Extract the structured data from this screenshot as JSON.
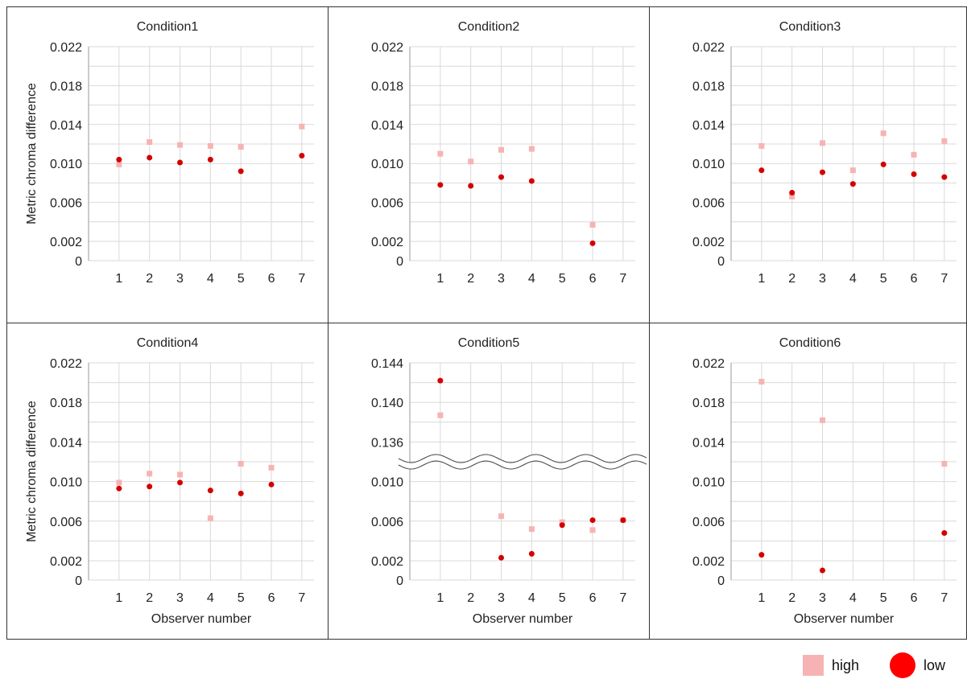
{
  "colors": {
    "high": "#f7b3b3",
    "low": "#d40000",
    "low_legend": "#ff0000",
    "grid": "#d9d9d9",
    "frame": "#333333"
  },
  "legend": {
    "high_label": "high",
    "low_label": "low"
  },
  "chart_data": [
    {
      "type": "scatter",
      "title": "Condition1",
      "ylabel": "Metric chroma difference",
      "xlabel": "",
      "categories": [
        "1",
        "2",
        "3",
        "4",
        "5",
        "6",
        "7"
      ],
      "ylim": [
        0,
        0.022
      ],
      "yticks": [
        "0.022",
        "0.018",
        "0.014",
        "0.010",
        "0.006",
        "0.002",
        "0"
      ],
      "grid": true,
      "series": [
        {
          "name": "high",
          "x": [
            1,
            2,
            3,
            4,
            5,
            7
          ],
          "y": [
            0.0099,
            0.0122,
            0.0119,
            0.0118,
            0.0117,
            0.0138
          ]
        },
        {
          "name": "low",
          "x": [
            1,
            2,
            3,
            4,
            5,
            7
          ],
          "y": [
            0.0104,
            0.0106,
            0.0101,
            0.0104,
            0.0092,
            0.0108
          ]
        }
      ]
    },
    {
      "type": "scatter",
      "title": "Condition2",
      "ylabel": "",
      "xlabel": "",
      "categories": [
        "1",
        "2",
        "3",
        "4",
        "5",
        "6",
        "7"
      ],
      "ylim": [
        0,
        0.022
      ],
      "yticks": [
        "0.022",
        "0.018",
        "0.014",
        "0.010",
        "0.006",
        "0.002",
        "0"
      ],
      "grid": true,
      "series": [
        {
          "name": "high",
          "x": [
            1,
            2,
            3,
            4,
            6
          ],
          "y": [
            0.011,
            0.0102,
            0.0114,
            0.0115,
            0.0037
          ]
        },
        {
          "name": "low",
          "x": [
            1,
            2,
            3,
            4,
            6
          ],
          "y": [
            0.0078,
            0.0077,
            0.0086,
            0.0082,
            0.0018
          ]
        }
      ]
    },
    {
      "type": "scatter",
      "title": "Condition3",
      "ylabel": "",
      "xlabel": "",
      "categories": [
        "1",
        "2",
        "3",
        "4",
        "5",
        "6",
        "7"
      ],
      "ylim": [
        0,
        0.022
      ],
      "yticks": [
        "0.022",
        "0.018",
        "0.014",
        "0.010",
        "0.006",
        "0.002",
        "0"
      ],
      "grid": true,
      "series": [
        {
          "name": "high",
          "x": [
            1,
            2,
            3,
            4,
            5,
            6,
            7
          ],
          "y": [
            0.0118,
            0.0066,
            0.0121,
            0.0093,
            0.0131,
            0.0109,
            0.0123
          ]
        },
        {
          "name": "low",
          "x": [
            1,
            2,
            3,
            4,
            5,
            6,
            7
          ],
          "y": [
            0.0093,
            0.007,
            0.0091,
            0.0079,
            0.0099,
            0.0089,
            0.0086
          ]
        }
      ]
    },
    {
      "type": "scatter",
      "title": "Condition4",
      "ylabel": "Metric chroma difference",
      "xlabel": "Observer number",
      "categories": [
        "1",
        "2",
        "3",
        "4",
        "5",
        "6",
        "7"
      ],
      "ylim": [
        0,
        0.022
      ],
      "yticks": [
        "0.022",
        "0.018",
        "0.014",
        "0.010",
        "0.006",
        "0.002",
        "0"
      ],
      "grid": true,
      "series": [
        {
          "name": "high",
          "x": [
            1,
            2,
            3,
            4,
            5,
            6
          ],
          "y": [
            0.0099,
            0.0108,
            0.0107,
            0.0063,
            0.0118,
            0.0114
          ]
        },
        {
          "name": "low",
          "x": [
            1,
            2,
            3,
            4,
            5,
            6
          ],
          "y": [
            0.0093,
            0.0095,
            0.0099,
            0.0091,
            0.0088,
            0.0097
          ]
        }
      ]
    },
    {
      "type": "scatter",
      "title": "Condition5",
      "ylabel": "",
      "xlabel": "Observer number",
      "categories": [
        "1",
        "2",
        "3",
        "4",
        "5",
        "6",
        "7"
      ],
      "broken_axis": true,
      "ylim": [
        0,
        0.144
      ],
      "yticks": [
        "0.144",
        "0.140",
        "0.136",
        "0.010",
        "0.006",
        "0.002",
        "0"
      ],
      "grid": true,
      "series": [
        {
          "name": "high",
          "x": [
            1,
            3,
            4,
            5,
            6,
            7
          ],
          "y": [
            0.1387,
            0.0065,
            0.0052,
            0.0059,
            0.0051,
            0.0061
          ]
        },
        {
          "name": "low",
          "x": [
            1,
            3,
            4,
            5,
            6,
            7
          ],
          "y": [
            0.1422,
            0.0023,
            0.0027,
            0.0056,
            0.0061,
            0.0061
          ]
        }
      ]
    },
    {
      "type": "scatter",
      "title": "Condition6",
      "ylabel": "",
      "xlabel": "Observer number",
      "categories": [
        "1",
        "2",
        "3",
        "4",
        "5",
        "6",
        "7"
      ],
      "ylim": [
        0,
        0.022
      ],
      "yticks": [
        "0.022",
        "0.018",
        "0.014",
        "0.010",
        "0.006",
        "0.002",
        "0"
      ],
      "grid": true,
      "series": [
        {
          "name": "high",
          "x": [
            1,
            3,
            7
          ],
          "y": [
            0.0201,
            0.0162,
            0.0118
          ]
        },
        {
          "name": "low",
          "x": [
            1,
            3,
            7
          ],
          "y": [
            0.0026,
            0.001,
            0.0048
          ]
        }
      ]
    }
  ]
}
